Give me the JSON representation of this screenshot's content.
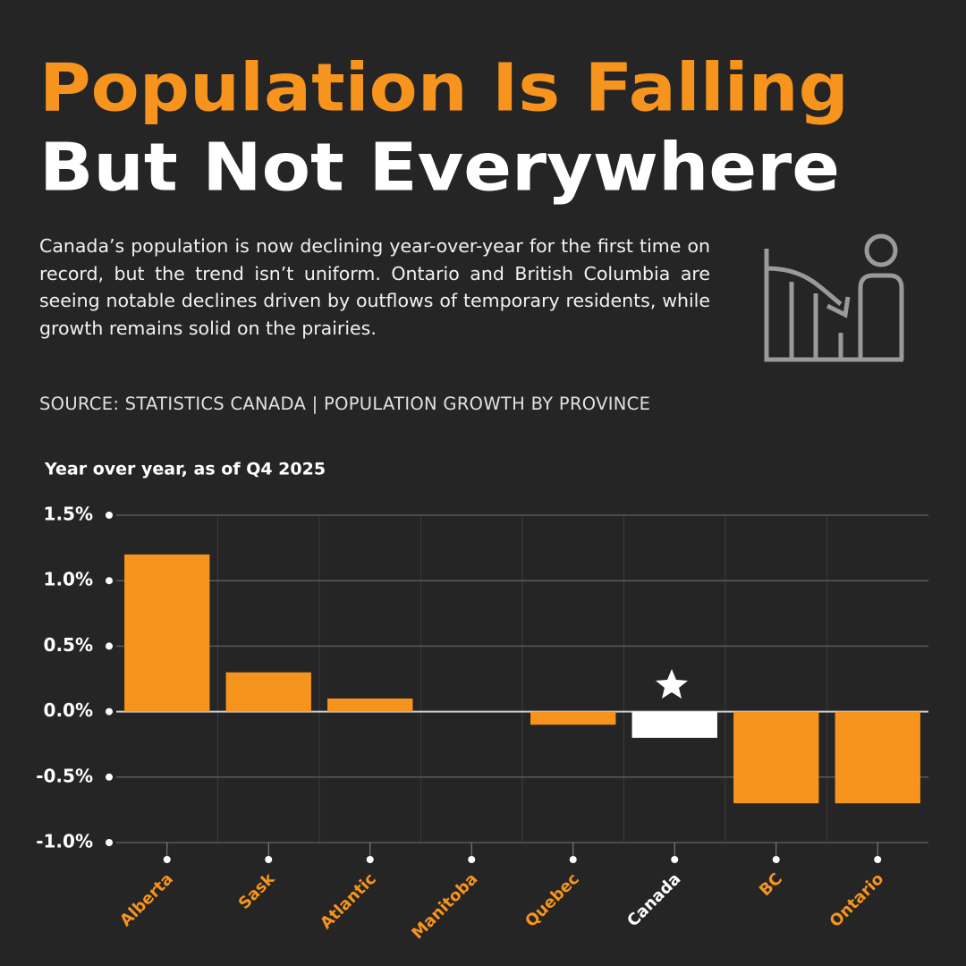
{
  "header": {
    "title_line1": "Population Is Falling",
    "title_line2": "But Not Everywhere",
    "description": "Canada’s population is now declining year-over-year for the first time on record, but the trend isn’t uniform. Ontario and British Columbia are seeing notable declines driven by outflows of temporary residents, while growth remains solid on the prairies.",
    "source": "SOURCE: STATISTICS CANADA | POPULATION GROWTH BY PROVINCE"
  },
  "chart_data": {
    "type": "bar",
    "subtitle": "Year over year, as of Q4 2025",
    "categories": [
      "Alberta",
      "Sask",
      "Atlantic",
      "Manitoba",
      "Quebec",
      "Canada",
      "BC",
      "Ontario"
    ],
    "values": [
      1.2,
      0.3,
      0.1,
      0.0,
      -0.1,
      -0.2,
      -0.7,
      -0.7
    ],
    "colors": [
      "#f7941d",
      "#f7941d",
      "#f7941d",
      "#f7941d",
      "#f7941d",
      "#ffffff",
      "#f7941d",
      "#f7941d"
    ],
    "ylim": [
      -1.0,
      1.5
    ],
    "yticks": [
      {
        "value": -1.0,
        "label": "-1.0%"
      },
      {
        "value": -0.5,
        "label": "-0.5%"
      },
      {
        "value": 0,
        "label": "0.0%"
      },
      {
        "value": 0.5,
        "label": "0.5%"
      },
      {
        "value": 1.0,
        "label": "1.0%"
      },
      {
        "value": 1.5,
        "label": "1.5%"
      }
    ],
    "grid": true
  }
}
